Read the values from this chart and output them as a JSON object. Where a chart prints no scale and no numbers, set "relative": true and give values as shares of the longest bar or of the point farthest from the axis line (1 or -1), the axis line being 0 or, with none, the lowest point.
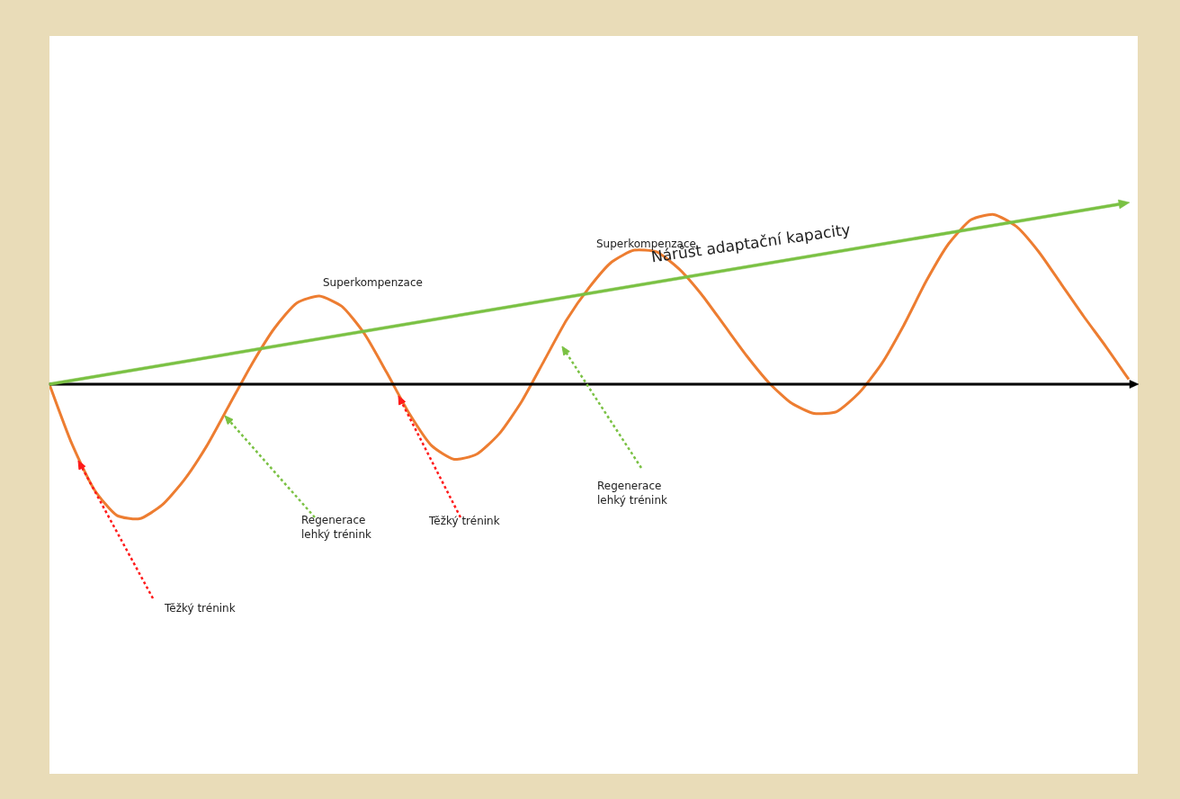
{
  "chart_data": {
    "type": "line",
    "relative": true,
    "categories": [
      null,
      null,
      null,
      null,
      null,
      null,
      null,
      null,
      null,
      null,
      null,
      null,
      null,
      null,
      null,
      null,
      null,
      null,
      null,
      null,
      null,
      null,
      null,
      null,
      null,
      null,
      null,
      null,
      null,
      null,
      null,
      null,
      null,
      null,
      null,
      null,
      null,
      null,
      null,
      null,
      null,
      null,
      null,
      null,
      null,
      null,
      null,
      null,
      null
    ],
    "series": [
      {
        "color": "#ed7d31",
        "values": [
          0,
          -0.35,
          -0.62,
          -0.77,
          -0.79,
          -0.71,
          -0.56,
          -0.36,
          -0.12,
          0.12,
          0.33,
          0.48,
          0.52,
          0.46,
          0.3,
          0.07,
          -0.17,
          -0.36,
          -0.44,
          -0.41,
          -0.29,
          -0.1,
          0.14,
          0.38,
          0.57,
          0.72,
          0.79,
          0.78,
          0.68,
          0.53,
          0.35,
          0.17,
          0.01,
          -0.11,
          -0.17,
          -0.16,
          -0.05,
          0.12,
          0.35,
          0.61,
          0.83,
          0.97,
          1,
          0.93,
          0.78,
          0.59,
          0.4,
          0.22,
          0.03
        ]
      }
    ],
    "annotations": [
      "Nárůst adaptační kapacity",
      "Superkompenzace",
      "Superkompenzace",
      "Regenerace\nlehký trénink",
      "Těžký trénink",
      "Regenerace\nlehký trénink",
      "Těžký trénink"
    ],
    "marker": "none",
    "line_style": "solid"
  }
}
